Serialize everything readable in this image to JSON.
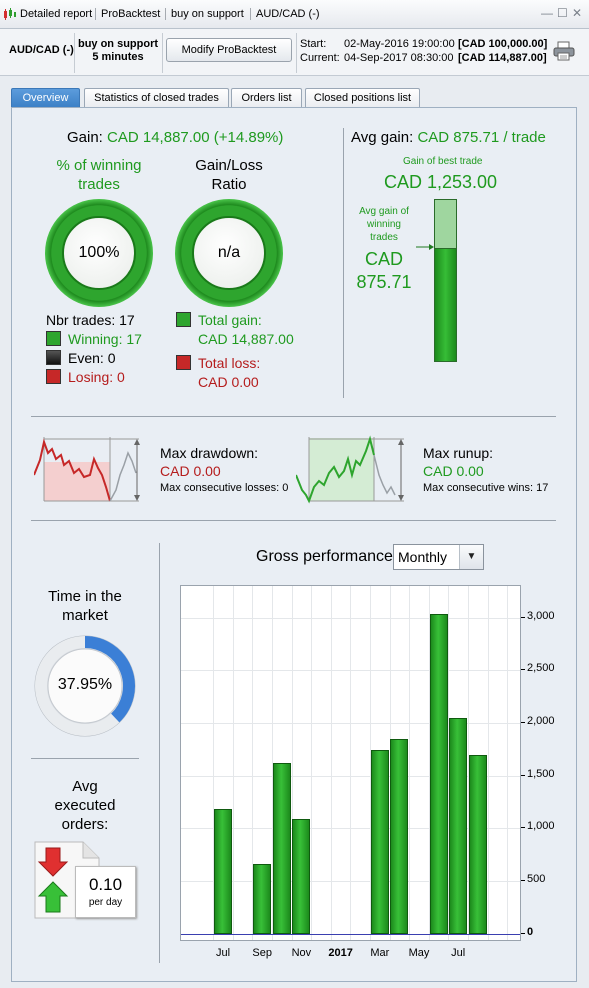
{
  "titlebar": {
    "items": [
      "Detailed report",
      "ProBacktest",
      "buy on support",
      "AUD/CAD (-)"
    ],
    "controls": [
      "—",
      "☐",
      "✕"
    ]
  },
  "header": {
    "instrument": "AUD/CAD (-)",
    "mode_line1": "buy on support",
    "mode_line2": "5 minutes",
    "modify_button": "Modify ProBacktest",
    "start_label": "Start:",
    "start_date": "02-May-2016 19:00:00",
    "start_amount": "[CAD 100,000.00]",
    "current_label": "Current:",
    "current_date": "04-Sep-2017 08:30:00",
    "current_amount": "[CAD 114,887.00]"
  },
  "tabs": [
    "Overview",
    "Statistics of closed trades",
    "Orders list",
    "Closed positions list"
  ],
  "overview": {
    "gain_label": "Gain:",
    "gain_value": "CAD 14,887.00 (+14.89%)",
    "winning_title_1": "% of winning",
    "winning_title_2": "trades",
    "winning_pct": "100%",
    "gl_title_1": "Gain/Loss",
    "gl_title_2": "Ratio",
    "gl_value": "n/a",
    "nbr_trades": "Nbr trades: 17",
    "winning": "Winning: 17",
    "even": "Even: 0",
    "losing": "Losing: 0",
    "total_gain_label": "Total gain:",
    "total_gain_value": "CAD 14,887.00",
    "total_loss_label": "Total loss:",
    "total_loss_value": "CAD 0.00",
    "avg_gain_label": "Avg gain:",
    "avg_gain_value": "CAD 875.71 / trade",
    "best_trade_label": "Gain of best trade",
    "best_trade_value": "CAD 1,253.00",
    "avg_gain_win_1": "Avg gain of",
    "avg_gain_win_2": "winning",
    "avg_gain_win_3": "trades",
    "avg_gain_win_val_1": "CAD",
    "avg_gain_win_val_2": "875.71",
    "avg_fill_fraction": 0.699
  },
  "drawdown": {
    "label": "Max drawdown:",
    "value": "CAD 0.00",
    "sub": "Max consecutive losses: 0"
  },
  "runup": {
    "label": "Max runup:",
    "value": "CAD 0.00",
    "sub": "Max consecutive wins: 17"
  },
  "time_market": {
    "title_1": "Time in the",
    "title_2": "market",
    "value": "37.95%",
    "fraction": 0.3795
  },
  "avg_orders": {
    "title_1": "Avg",
    "title_2": "executed",
    "title_3": "orders:",
    "value": "0.10",
    "unit": "per day"
  },
  "gross": {
    "title": "Gross performance",
    "period": "Monthly"
  },
  "colors": {
    "accent_green": "#1f9a1f",
    "loss_red": "#b51c1c",
    "tab_blue": "#3b7fc5"
  },
  "chart_data": {
    "type": "bar",
    "categories": [
      "2016-07",
      "2016-08",
      "2016-09",
      "2016-10",
      "2016-11",
      "2016-12",
      "2017-01",
      "2017-02",
      "2017-03",
      "2017-04",
      "2017-05",
      "2017-06",
      "2017-07",
      "2017-08"
    ],
    "values": [
      1180,
      0,
      660,
      1620,
      1090,
      0,
      0,
      0,
      1740,
      1850,
      0,
      3030,
      2050,
      1700
    ],
    "x_tick_labels": [
      "Jul",
      "Sep",
      "Nov",
      "2017",
      "Mar",
      "May",
      "Jul"
    ],
    "y_ticks": [
      0,
      500,
      1000,
      1500,
      2000,
      2500,
      3000
    ],
    "y_tick_labels": [
      "0",
      "500",
      "1,000",
      "1,500",
      "2,000",
      "2,500",
      "3,000"
    ],
    "ylim": [
      -60,
      3300
    ],
    "grid": true
  }
}
